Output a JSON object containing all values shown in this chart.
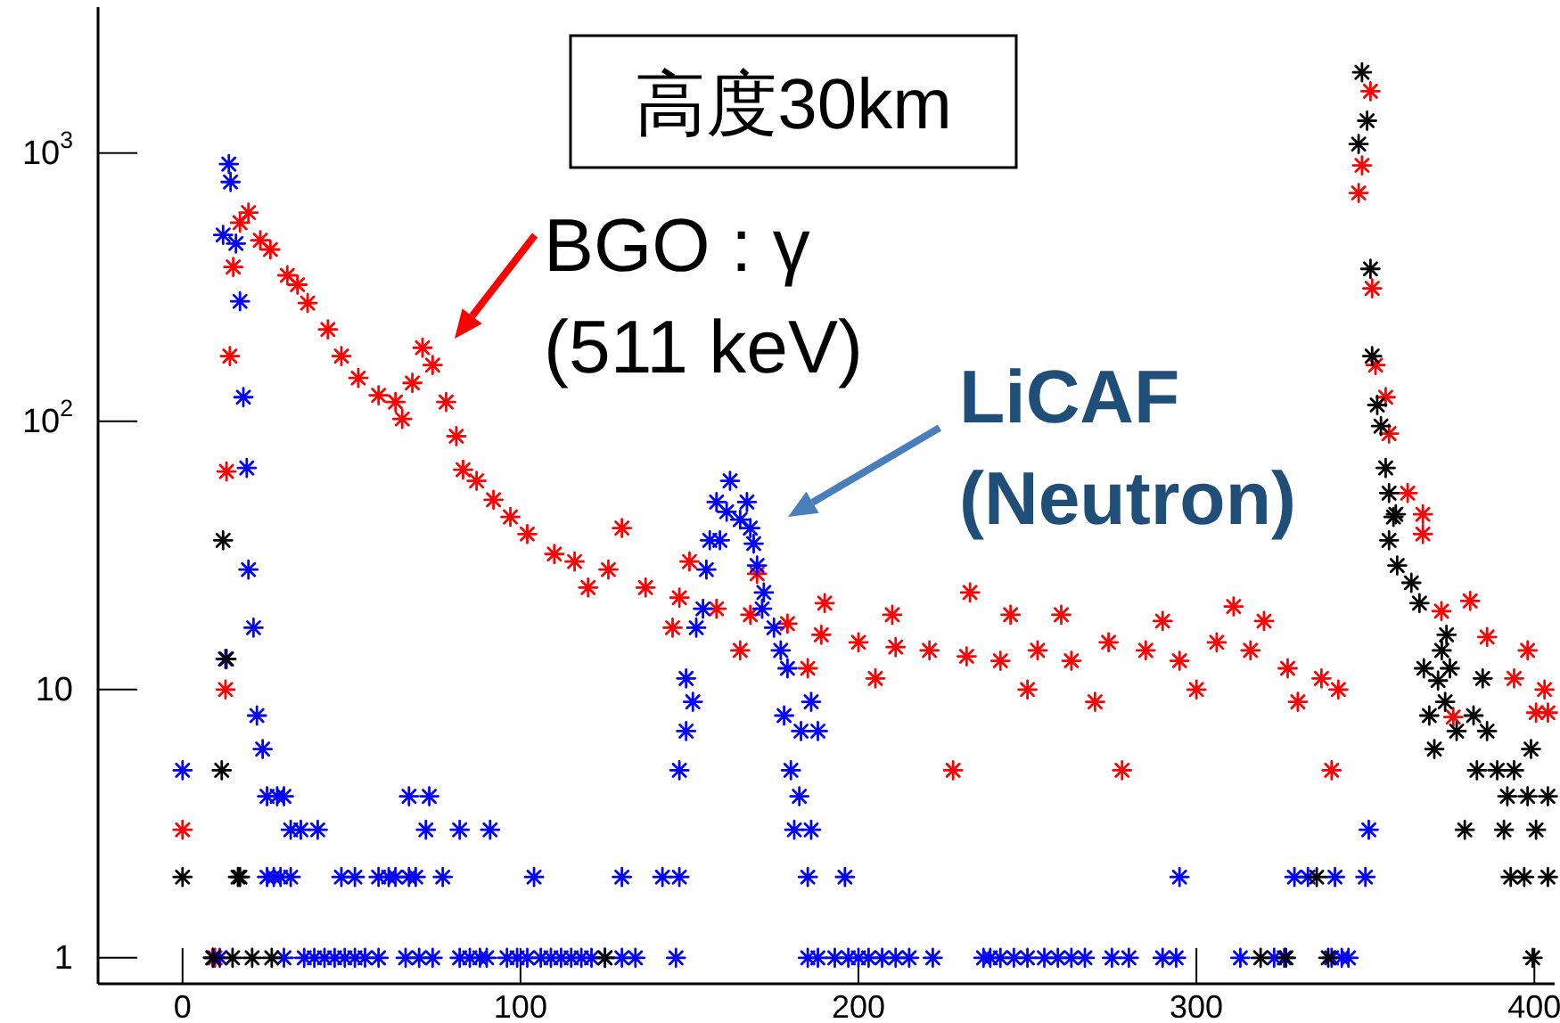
{
  "chart_data": {
    "type": "scatter",
    "title": "高度30km",
    "marker": "cross",
    "grid": false,
    "xlim": [
      -25,
      406
    ],
    "xticks": [
      0,
      100,
      200,
      300,
      400
    ],
    "log": "y",
    "ylim": [
      0.8,
      3500
    ],
    "yticks": [
      1,
      10,
      {
        "value": 100,
        "label": "10$^{2}$"
      },
      {
        "value": 1000,
        "label": "10$^{3}$"
      }
    ],
    "annotations": [
      "BGO : γ\n(511 keV)",
      "LiCAF\n(Neutron)"
    ],
    "series": [
      {
        "color": "#ff0000",
        "x": [
          0,
          9.6,
          12.7,
          13,
          14,
          15,
          17,
          19.5,
          23,
          26,
          31,
          34,
          37,
          43,
          47,
          52,
          58,
          63,
          65,
          68,
          71,
          74,
          78,
          81,
          83,
          87,
          92,
          97,
          102,
          110,
          116,
          126,
          137,
          147,
          158,
          168,
          179,
          189,
          200,
          211,
          221,
          228,
          232,
          233,
          242,
          245,
          253,
          263,
          274,
          278,
          285,
          295,
          306,
          311,
          316,
          327,
          337,
          340,
          342,
          348,
          349,
          351.5,
          352,
          353,
          356,
          357,
          362.5,
          367,
          367,
          372.5,
          376,
          381,
          386,
          394,
          398,
          400.5,
          403,
          404,
          250,
          260,
          270,
          290,
          300,
          320,
          330,
          130,
          150,
          170,
          190,
          210,
          120,
          145,
          165,
          185,
          205
        ],
        "values": [
          3,
          1,
          10,
          65,
          175,
          376,
          550,
          600,
          473,
          437,
          350,
          323,
          276,
          220,
          175,
          145,
          125,
          118,
          102,
          139,
          188,
          162,
          118,
          88,
          66,
          60,
          51,
          44,
          38,
          32,
          30,
          28,
          24,
          22,
          20,
          19,
          17.6,
          16,
          15,
          14.4,
          14,
          5,
          13.3,
          23,
          12.8,
          19,
          14,
          12.8,
          15,
          5,
          14,
          12.8,
          15,
          20.4,
          14,
          12,
          11,
          5,
          10,
          710,
          900,
          1700,
          313,
          162,
          123,
          90,
          54,
          45,
          38,
          19.6,
          7.9,
          21.4,
          15.7,
          11,
          14,
          8.2,
          10,
          8.2,
          10,
          19,
          9,
          18,
          10,
          18,
          9,
          40,
          30,
          27,
          21,
          19,
          24,
          17,
          14,
          12,
          11
        ]
      },
      {
        "color": "#0000ff",
        "x": [
          0,
          13.7,
          14.2,
          12,
          15.8,
          17,
          18,
          19,
          19.5,
          21,
          12.7,
          22,
          23.7,
          25,
          28,
          30,
          32,
          35,
          40,
          25,
          27,
          29,
          32,
          47,
          51,
          58,
          61,
          63,
          67,
          69,
          77,
          67,
          73,
          72,
          82,
          91,
          104,
          130,
          142,
          147,
          147,
          149,
          151,
          149,
          152,
          154,
          155,
          156,
          159,
          158,
          162,
          161,
          167,
          165,
          168,
          169,
          170,
          172,
          171.5,
          175,
          177,
          179,
          178,
          186,
          183,
          188,
          180,
          182.5,
          181,
          186,
          185,
          196,
          295,
          329,
          333,
          341,
          350,
          351,
          9,
          11,
          30,
          36,
          39,
          42,
          45,
          48,
          51,
          54,
          58,
          66,
          70,
          74,
          82,
          85,
          88,
          90,
          96,
          99,
          102,
          106,
          109,
          112,
          115,
          118,
          121,
          125,
          130,
          134,
          146,
          185,
          188,
          193,
          197,
          200,
          203,
          207,
          211,
          215,
          222,
          237,
          239,
          242,
          246,
          250,
          255,
          259,
          263,
          267,
          275,
          280,
          290,
          294,
          313,
          323,
          326,
          340,
          343,
          345
        ],
        "values": [
          5,
          910,
          780,
          495,
          460,
          280,
          123,
          67,
          28,
          17,
          13,
          8,
          6,
          4,
          4,
          4,
          3,
          3,
          3,
          2,
          2,
          2,
          2,
          2,
          2,
          2,
          2,
          2,
          2,
          2,
          2,
          4,
          4,
          3,
          3,
          3,
          2,
          2,
          2,
          2,
          5,
          7,
          9,
          11,
          17,
          20,
          28,
          36,
          36,
          50,
          60,
          46,
          50,
          43,
          40,
          35,
          29,
          23,
          20,
          17,
          14,
          12,
          8,
          9,
          7,
          7,
          5,
          4,
          3,
          3,
          2,
          2,
          2,
          2,
          2,
          2,
          2,
          3,
          1,
          1,
          1,
          1,
          1,
          1,
          1,
          1,
          1,
          1,
          1,
          1,
          1,
          1,
          1,
          1,
          1,
          1,
          1,
          1,
          1,
          1,
          1,
          1,
          1,
          1,
          1,
          1,
          1,
          1,
          1,
          1,
          1,
          1,
          1,
          1,
          1,
          1,
          1,
          1,
          1,
          1,
          1,
          1,
          1,
          1,
          1,
          1,
          1,
          1,
          1,
          1,
          1,
          1,
          1,
          1,
          1,
          1,
          1,
          1
        ]
      },
      {
        "color": "#000000",
        "x": [
          12,
          13,
          11.6,
          0,
          16.4,
          17,
          9,
          14.8,
          20.6,
          26.4,
          125,
          319,
          326.5,
          339,
          399.5,
          335.6,
          393,
          397,
          404,
          349,
          350.5,
          348,
          351.5,
          352,
          353.5,
          354.6,
          356,
          357,
          359,
          358.3,
          357,
          359.4,
          363.6,
          366,
          374,
          372.6,
          367.3,
          371.5,
          375,
          373.6,
          368.9,
          382,
          370.4,
          377,
          386,
          384.7,
          399,
          383,
          389,
          394,
          392,
          398,
          404,
          379.4,
          391,
          400.5
        ],
        "values": [
          36,
          13,
          5,
          2,
          2,
          2,
          1,
          1,
          1,
          1,
          1,
          1,
          1,
          1,
          1,
          2,
          2,
          2,
          2,
          2000,
          1320,
          1080,
          370,
          175,
          115,
          96,
          67,
          54,
          45,
          44,
          36,
          29,
          25,
          21,
          16,
          14,
          12,
          10.8,
          12,
          9,
          8,
          8,
          6,
          7,
          7,
          11,
          6,
          5,
          5,
          5,
          4,
          4,
          4,
          3,
          3,
          3
        ]
      }
    ]
  }
}
